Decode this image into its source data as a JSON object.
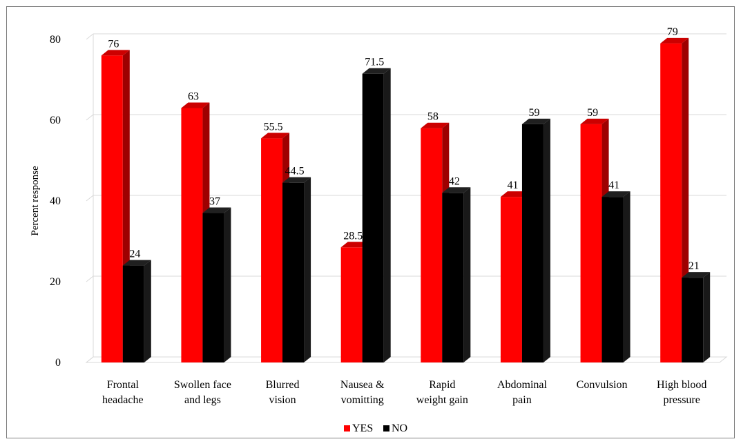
{
  "chart_data": {
    "type": "bar",
    "style": "3d-clustered-column",
    "ylabel": "Percent response",
    "xlabel": "",
    "ylim": [
      0,
      80
    ],
    "yticks": [
      0,
      20,
      40,
      60,
      80
    ],
    "grid": true,
    "legend": "bottom",
    "categories": [
      [
        "Frontal",
        "headache"
      ],
      [
        "Swollen face",
        "and legs"
      ],
      [
        "Blurred",
        "vision"
      ],
      [
        "Nausea &",
        "vomitting"
      ],
      [
        "Rapid",
        "weight gain"
      ],
      [
        "Abdominal",
        "pain"
      ],
      [
        "Convulsion"
      ],
      [
        "High blood",
        "pressure"
      ]
    ],
    "series": [
      {
        "name": "YES",
        "color": "#ff0000",
        "values": [
          76,
          63,
          55.5,
          28.5,
          58,
          41,
          59,
          79
        ]
      },
      {
        "name": "NO",
        "color": "#000000",
        "values": [
          24,
          37,
          44.5,
          71.5,
          42,
          59,
          41,
          21
        ]
      }
    ]
  }
}
